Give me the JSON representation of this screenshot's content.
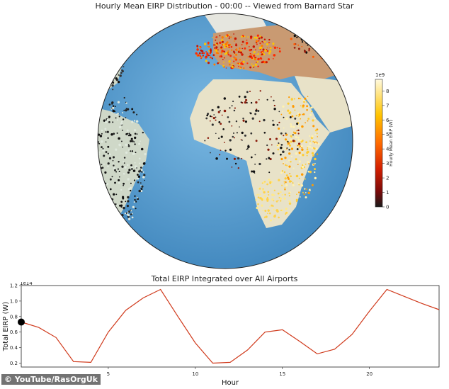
{
  "map": {
    "title": "Hourly Mean EIRP Distribution - 00:00 -- Viewed from Barnard Star",
    "colorbar": {
      "label": "Hourly Mean EIRP (W)",
      "scale_label": "1e9",
      "ticks": [
        0,
        1,
        2,
        3,
        4,
        5,
        6,
        7,
        8
      ],
      "range": [
        0,
        8.8
      ],
      "colors": [
        "#1a1a1a",
        "#7a0a0a",
        "#d31f00",
        "#ff6a00",
        "#ffc400",
        "#fffae0"
      ]
    },
    "ocean_color": "#5aa2d6",
    "land_color": "#e8e2c8"
  },
  "chart_data": {
    "type": "line",
    "title": "Total EIRP Integrated over All Airports",
    "xlabel": "Hour",
    "ylabel": "Total EIRP (W)",
    "y_scale_label": "1e14",
    "xlim": [
      0,
      24
    ],
    "ylim": [
      0.15,
      1.2
    ],
    "xticks": [
      5,
      10,
      15,
      20
    ],
    "yticks": [
      0.2,
      0.4,
      0.6,
      0.8,
      1.0,
      1.2
    ],
    "line_color": "#d03a1c",
    "marker": {
      "x": 0,
      "y": 0.73
    },
    "series": [
      {
        "x": [
          0,
          1,
          2,
          3,
          4,
          5,
          6,
          7,
          8,
          9,
          10,
          11,
          12,
          13,
          14,
          15,
          16,
          17,
          18,
          19,
          20,
          21,
          22,
          23,
          24
        ],
        "values": [
          0.73,
          0.66,
          0.53,
          0.22,
          0.21,
          0.6,
          0.88,
          1.04,
          1.15,
          0.8,
          0.46,
          0.2,
          0.21,
          0.37,
          0.6,
          0.63,
          0.48,
          0.32,
          0.38,
          0.57,
          0.87,
          1.15,
          1.06,
          0.97,
          0.89
        ]
      }
    ]
  },
  "credit": "© YouTube/RasOrgUk"
}
